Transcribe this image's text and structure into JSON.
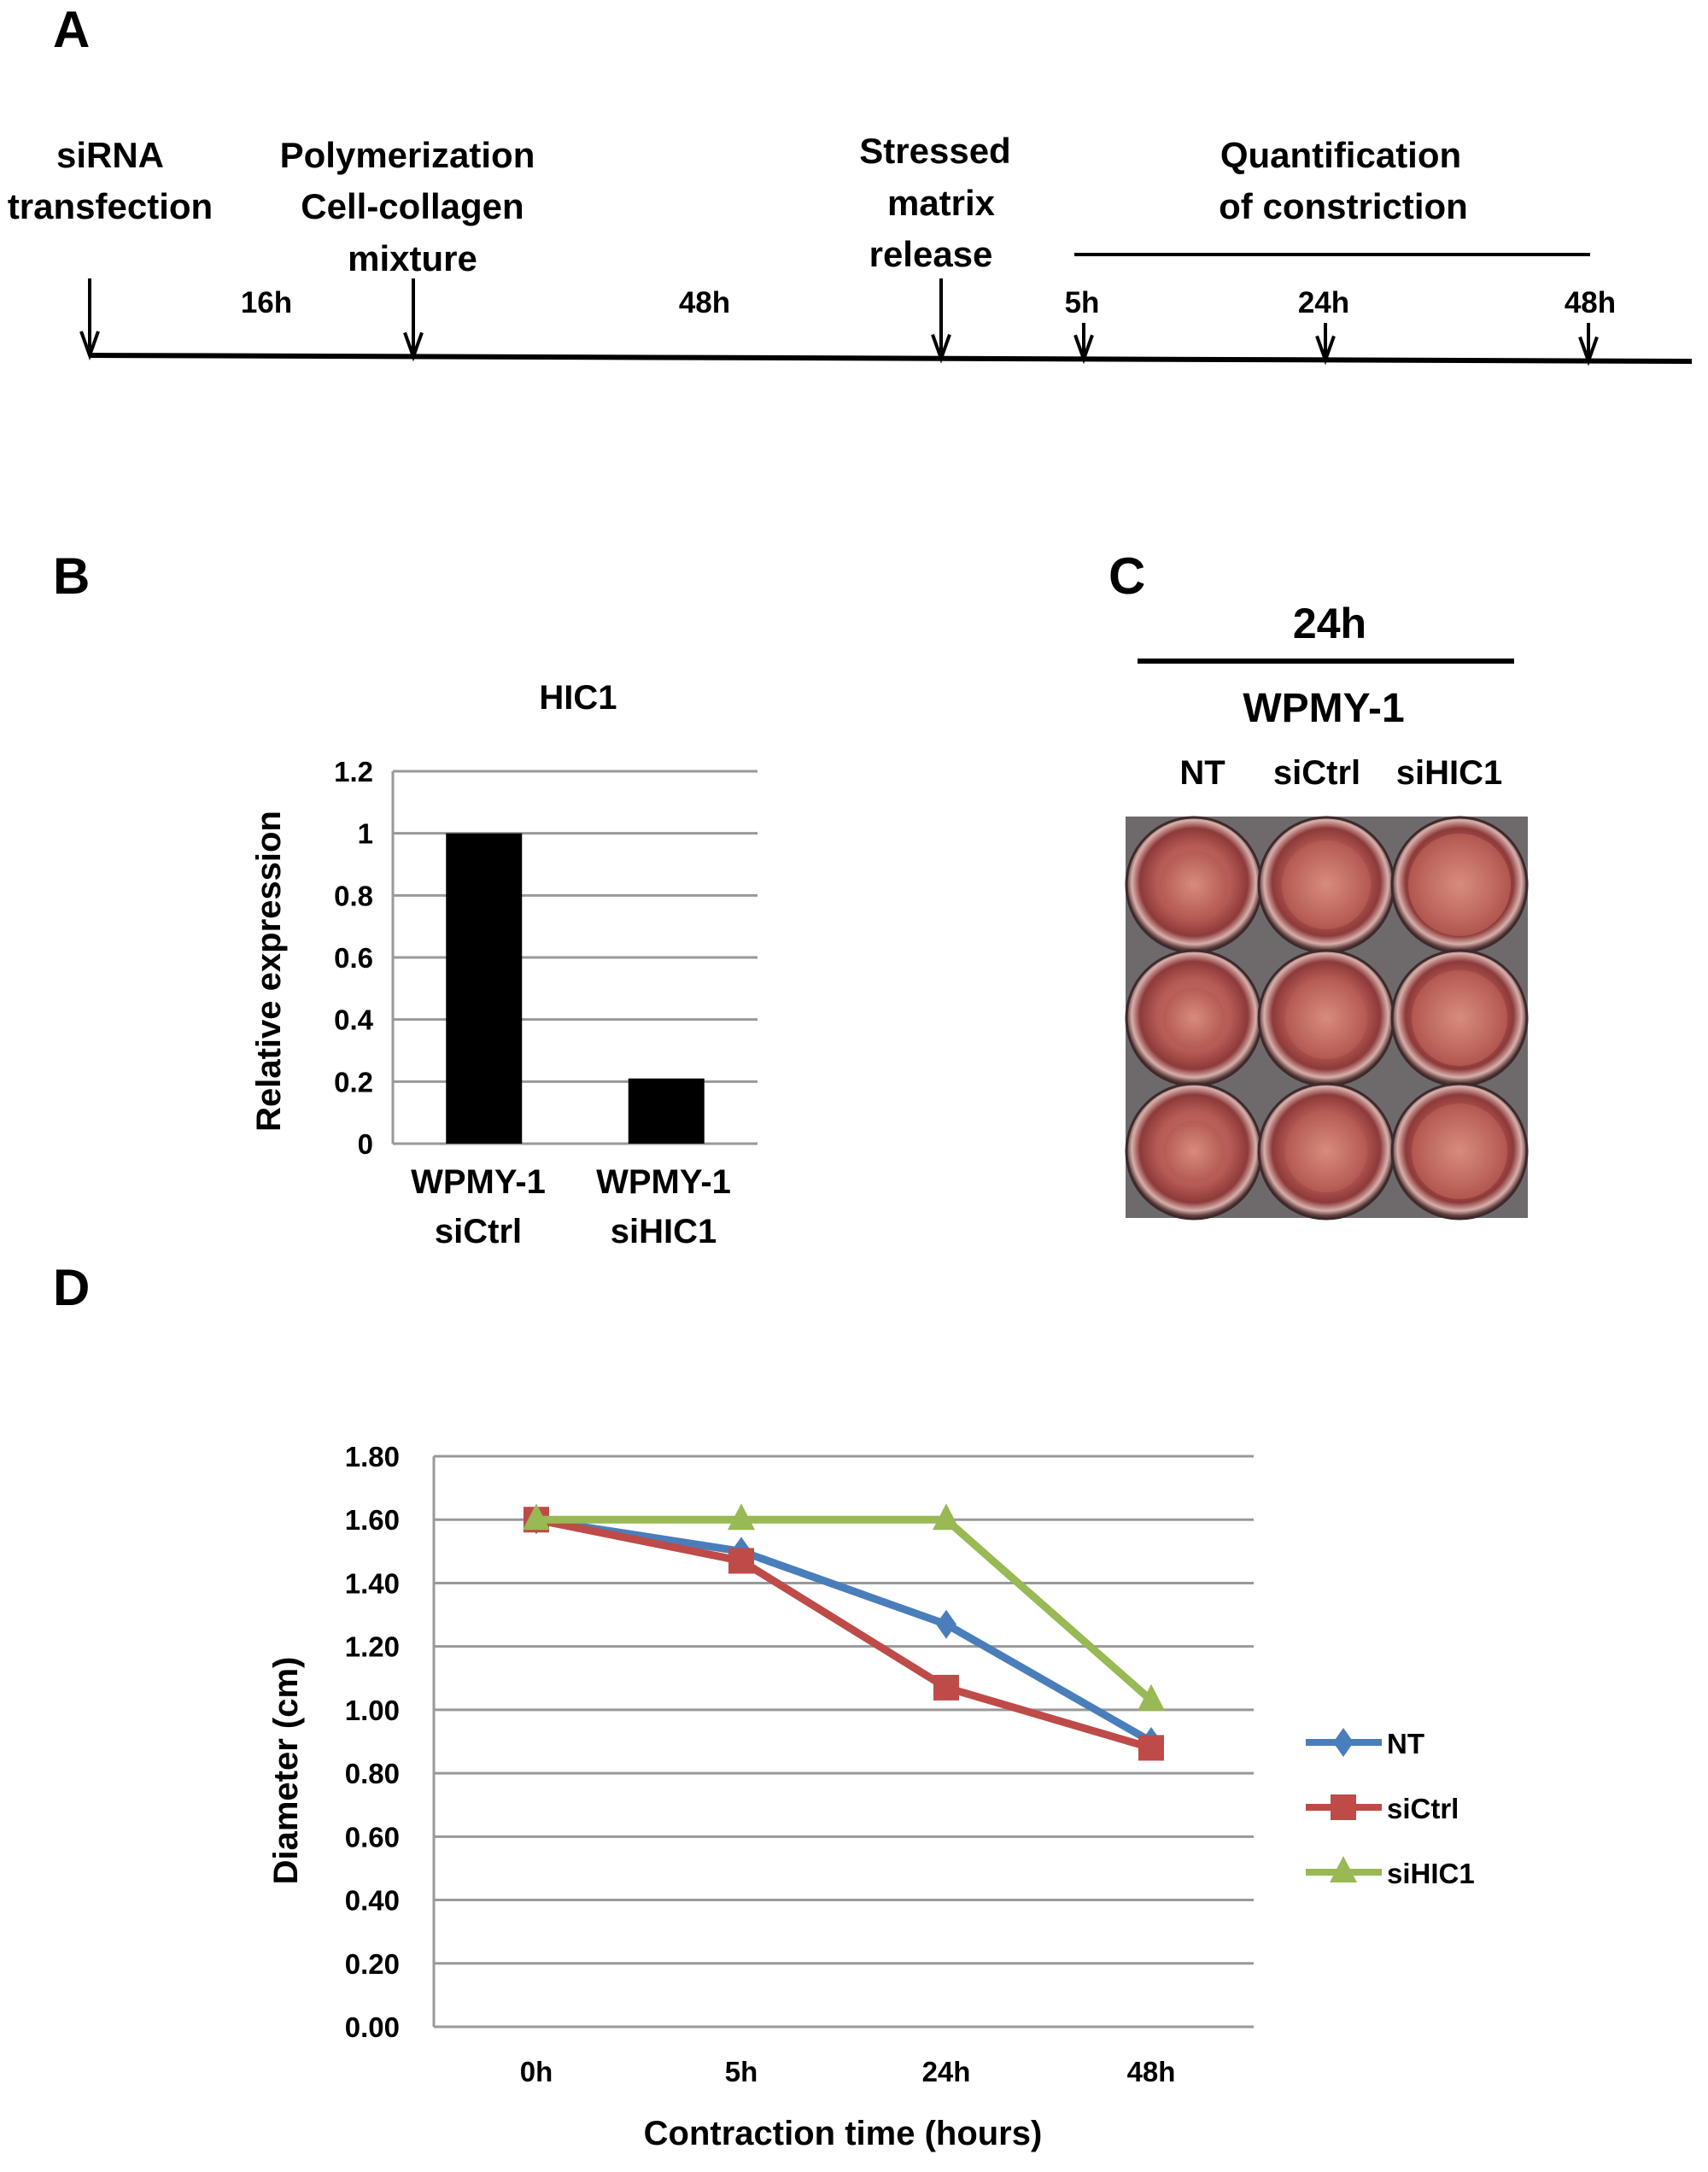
{
  "panels": {
    "a": "A",
    "b": "B",
    "c": "C",
    "d": "D"
  },
  "timeline": {
    "events": [
      {
        "lines": [
          "siRNA",
          "transfection"
        ]
      },
      {
        "lines": [
          "Polymerization",
          "Cell-collagen",
          "mixture"
        ]
      },
      {
        "lines": [
          "Stressed",
          "matrix",
          "release"
        ]
      },
      {
        "lines": [
          "Quantification",
          "of constriction"
        ]
      }
    ],
    "intervals": [
      "16h",
      "48h",
      "5h",
      "24h",
      "48h"
    ]
  },
  "photo_panel": {
    "time": "24h",
    "cell_line": "WPMY-1",
    "columns": [
      "NT",
      "siCtrl",
      "siHIC1"
    ]
  },
  "chart_data": [
    {
      "type": "bar",
      "title": "HIC1",
      "ylabel": "Relative expression",
      "xlabel": "",
      "categories": [
        [
          "WPMY-1",
          "siCtrl"
        ],
        [
          "WPMY-1",
          "siHIC1"
        ]
      ],
      "values": [
        1.0,
        0.21
      ],
      "ylim": [
        0,
        1.2
      ],
      "yticks": [
        "0",
        "0.2",
        "0.4",
        "0.6",
        "0.8",
        "1",
        "1.2"
      ],
      "grid": true,
      "color": "#000000"
    },
    {
      "type": "line",
      "title": "",
      "xlabel": "Contraction time (hours)",
      "ylabel": "Diameter (cm)",
      "categories": [
        "0h",
        "5h",
        "24h",
        "48h"
      ],
      "ylim": [
        0,
        1.8
      ],
      "yticks": [
        "0.00",
        "0.20",
        "0.40",
        "0.60",
        "0.80",
        "1.00",
        "1.20",
        "1.40",
        "1.60",
        "1.80"
      ],
      "grid": true,
      "legend": "right",
      "series": [
        {
          "name": "NT",
          "values": [
            1.6,
            1.5,
            1.27,
            0.9
          ],
          "color": "#4A7EBB",
          "marker": "diamond"
        },
        {
          "name": "siCtrl",
          "values": [
            1.6,
            1.47,
            1.07,
            0.88
          ],
          "color": "#BE4B48",
          "marker": "square"
        },
        {
          "name": "siHIC1",
          "values": [
            1.6,
            1.6,
            1.6,
            1.03
          ],
          "color": "#98B954",
          "marker": "triangle"
        }
      ]
    }
  ]
}
